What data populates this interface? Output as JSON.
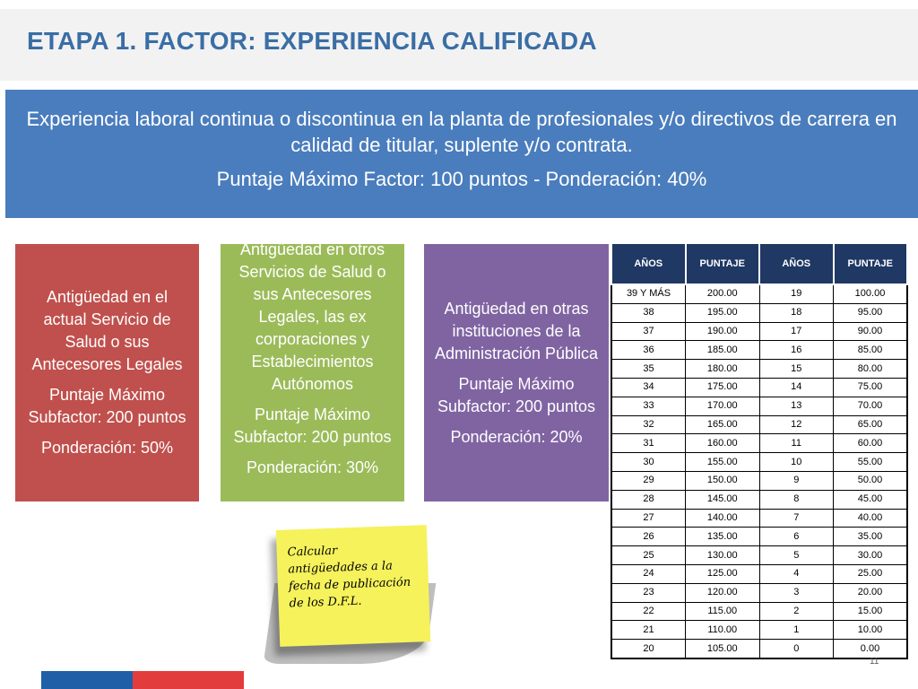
{
  "title": "ETAPA 1. FACTOR: EXPERIENCIA CALIFICADA",
  "banner": {
    "description": "Experiencia laboral continua o discontinua en la planta de profesionales y/o directivos de carrera en calidad de titular, suplente y/o contrata.",
    "max_score": "Puntaje Máximo Factor: 100 puntos - Ponderación: 40%"
  },
  "subfactors": [
    {
      "name": "Antigüedad en el actual Servicio de Salud o sus Antecesores Legales",
      "max": "Puntaje Máximo Subfactor: 200 puntos",
      "weight": "Ponderación: 50%",
      "color": "#c0504d"
    },
    {
      "name": "Antigüedad en otros Servicios de Salud o sus Antecesores Legales, las ex corporaciones y Establecimientos Autónomos",
      "max": "Puntaje Máximo Subfactor: 200 puntos",
      "weight": "Ponderación: 30%",
      "color": "#9bbb59"
    },
    {
      "name": "Antigüedad en otras instituciones de la Administración Pública",
      "max": "Puntaje Máximo Subfactor: 200 puntos",
      "weight": "Ponderación: 20%",
      "color": "#8064a2"
    }
  ],
  "table": {
    "headers": [
      "AÑOS",
      "PUNTAJE",
      "AÑOS",
      "PUNTAJE"
    ],
    "rows": [
      [
        "39 Y MÁS",
        "200.00",
        "19",
        "100.00"
      ],
      [
        "38",
        "195.00",
        "18",
        "95.00"
      ],
      [
        "37",
        "190.00",
        "17",
        "90.00"
      ],
      [
        "36",
        "185.00",
        "16",
        "85.00"
      ],
      [
        "35",
        "180.00",
        "15",
        "80.00"
      ],
      [
        "34",
        "175.00",
        "14",
        "75.00"
      ],
      [
        "33",
        "170.00",
        "13",
        "70.00"
      ],
      [
        "32",
        "165.00",
        "12",
        "65.00"
      ],
      [
        "31",
        "160.00",
        "11",
        "60.00"
      ],
      [
        "30",
        "155.00",
        "10",
        "55.00"
      ],
      [
        "29",
        "150.00",
        "9",
        "50.00"
      ],
      [
        "28",
        "145.00",
        "8",
        "45.00"
      ],
      [
        "27",
        "140.00",
        "7",
        "40.00"
      ],
      [
        "26",
        "135.00",
        "6",
        "35.00"
      ],
      [
        "25",
        "130.00",
        "5",
        "30.00"
      ],
      [
        "24",
        "125.00",
        "4",
        "25.00"
      ],
      [
        "23",
        "120.00",
        "3",
        "20.00"
      ],
      [
        "22",
        "115.00",
        "2",
        "15.00"
      ],
      [
        "21",
        "110.00",
        "1",
        "10.00"
      ],
      [
        "20",
        "105.00",
        "0",
        "0.00"
      ]
    ]
  },
  "note": "Calcular antigüedades a la fecha de publicación de los D.F.L.",
  "page_number": "11",
  "colors": {
    "title": "#3a6ea5",
    "banner": "#4a7dbd",
    "table_header": "#1f3864",
    "note": "#f5f25c",
    "flag_blue": "#1f5fa8",
    "flag_red": "#e23c3c"
  }
}
